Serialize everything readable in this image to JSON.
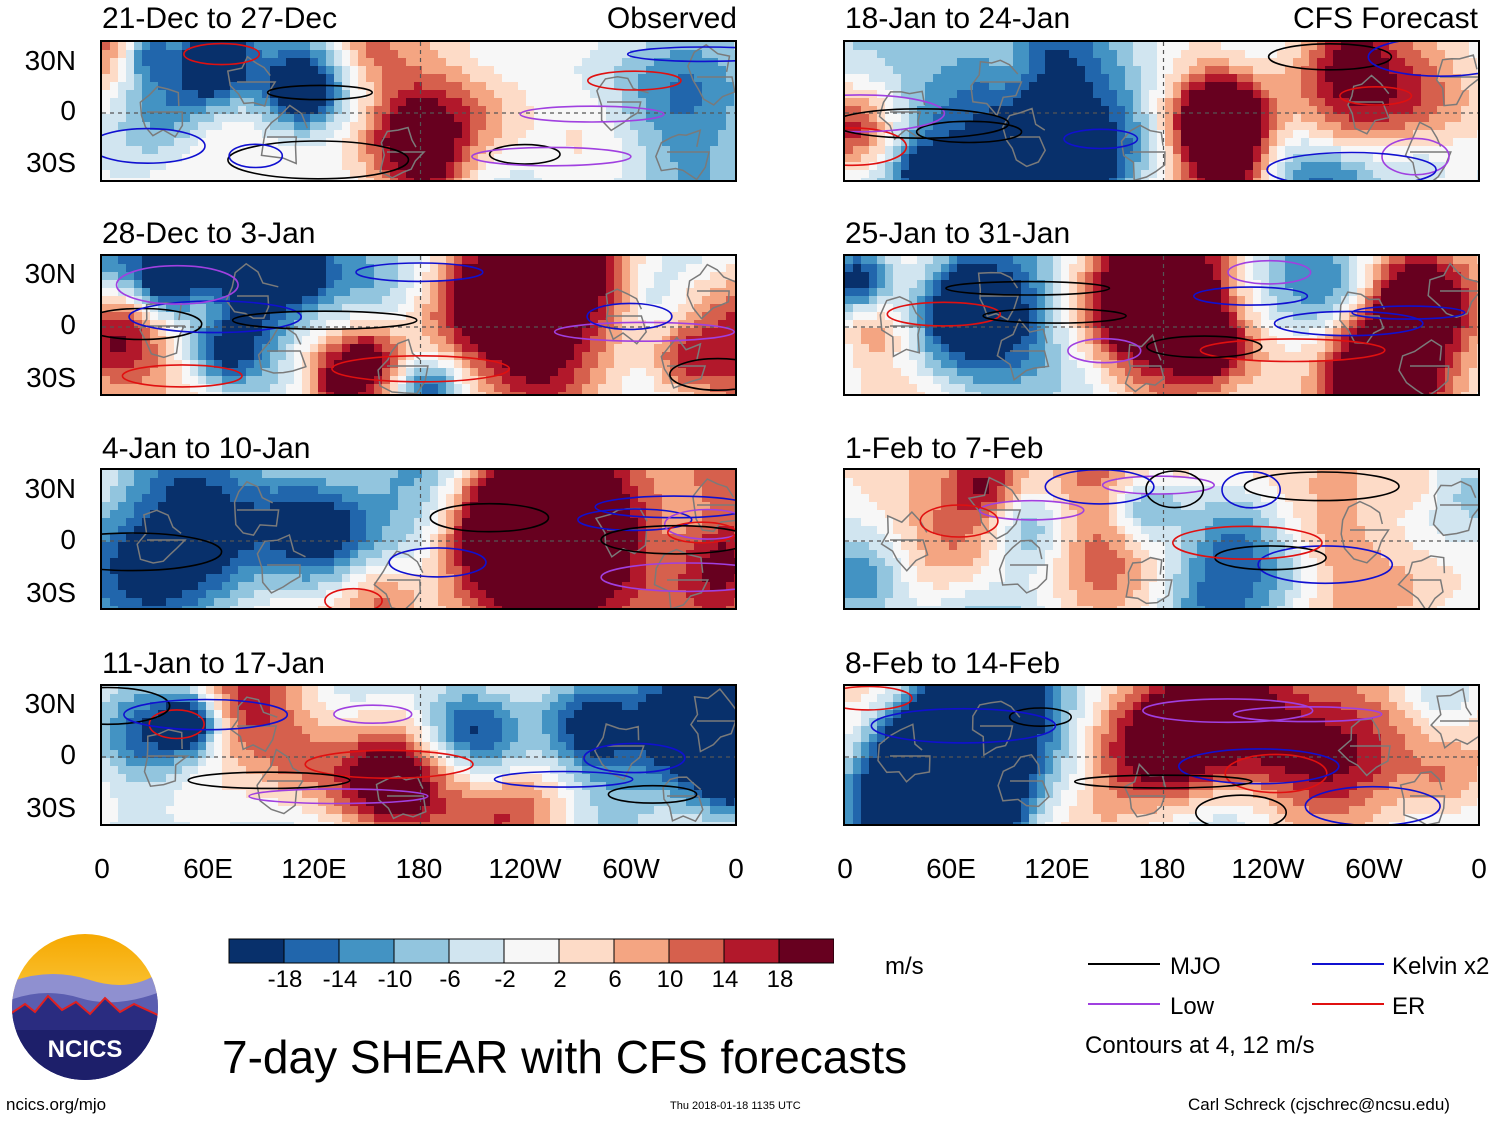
{
  "chart_data": {
    "type": "heatmap",
    "title": "7-day SHEAR with CFS forecasts",
    "units": "m/s",
    "xticks": [
      "0",
      "60E",
      "120E",
      "180",
      "120W",
      "60W",
      "0"
    ],
    "yticks": [
      "30N",
      "0",
      "30S"
    ],
    "xlim_deg": [
      0,
      360
    ],
    "ylim_deg": [
      -40,
      40
    ],
    "observed_label": "Observed",
    "forecast_label": "CFS Forecast",
    "observed_periods": [
      "21-Dec to 27-Dec",
      "28-Dec to 3-Jan",
      "4-Jan to 10-Jan",
      "11-Jan to 17-Jan"
    ],
    "forecast_periods": [
      "18-Jan to 24-Jan",
      "25-Jan to 31-Jan",
      "1-Feb to 7-Feb",
      "8-Feb to 14-Feb"
    ],
    "colorbar": {
      "levels": [
        "-18",
        "-14",
        "-10",
        "-6",
        "-2",
        "2",
        "6",
        "10",
        "14",
        "18"
      ],
      "colors": [
        "#08306b",
        "#2166ac",
        "#4393c3",
        "#92c5de",
        "#d1e5f0",
        "#f7f7f7",
        "#fddbc7",
        "#f4a582",
        "#d6604d",
        "#b2182b",
        "#67001f"
      ]
    },
    "legend": [
      {
        "name": "MJO",
        "color": "#000000"
      },
      {
        "name": "Kelvin x2",
        "color": "#1010d0"
      },
      {
        "name": "Low",
        "color": "#a040e0"
      },
      {
        "name": "ER",
        "color": "#e01010"
      }
    ],
    "contour_note": "Contours at 4, 12 m/s"
  },
  "logo": {
    "text": "NCICS"
  },
  "footer": {
    "url": "ncics.org/mjo",
    "timestamp": "Thu 2018-01-18 1135 UTC",
    "credit": "Carl Schreck (cjschrec@ncsu.edu)"
  }
}
